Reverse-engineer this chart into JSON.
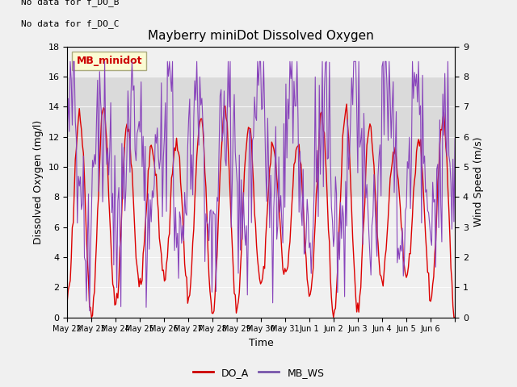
{
  "title": "Mayberry miniDot Dissolved Oxygen",
  "xlabel": "Time",
  "ylabel_left": "Dissolved Oxygen (mg/l)",
  "ylabel_right": "Wind Speed (m/s)",
  "text_no_data": [
    "No data for f_DO_B",
    "No data for f_DO_C"
  ],
  "legend_label": "MB_minidot",
  "legend_bottom": [
    "DO_A",
    "MB_WS"
  ],
  "legend_colors": [
    "#cc0000",
    "#7755aa"
  ],
  "ylim_left": [
    0,
    18
  ],
  "ylim_right": [
    0,
    9.0
  ],
  "yticks_left": [
    0,
    2,
    4,
    6,
    8,
    10,
    12,
    14,
    16,
    18
  ],
  "yticks_right": [
    0.0,
    1.0,
    2.0,
    3.0,
    4.0,
    5.0,
    6.0,
    7.0,
    8.0,
    9.0
  ],
  "shaded_region": [
    8,
    16
  ],
  "color_DO": "#dd0000",
  "color_WS": "#8844bb",
  "color_shade": "#cccccc",
  "bg_color": "#f0f0f0",
  "x_tick_labels": [
    "May 22",
    "May 23",
    "May 24",
    "May 25",
    "May 26",
    "May 27",
    "May 28",
    "May 29",
    "May 30",
    "May 31",
    "Jun 1",
    "Jun 2",
    "Jun 3",
    "Jun 4",
    "Jun 5",
    "Jun 6"
  ]
}
